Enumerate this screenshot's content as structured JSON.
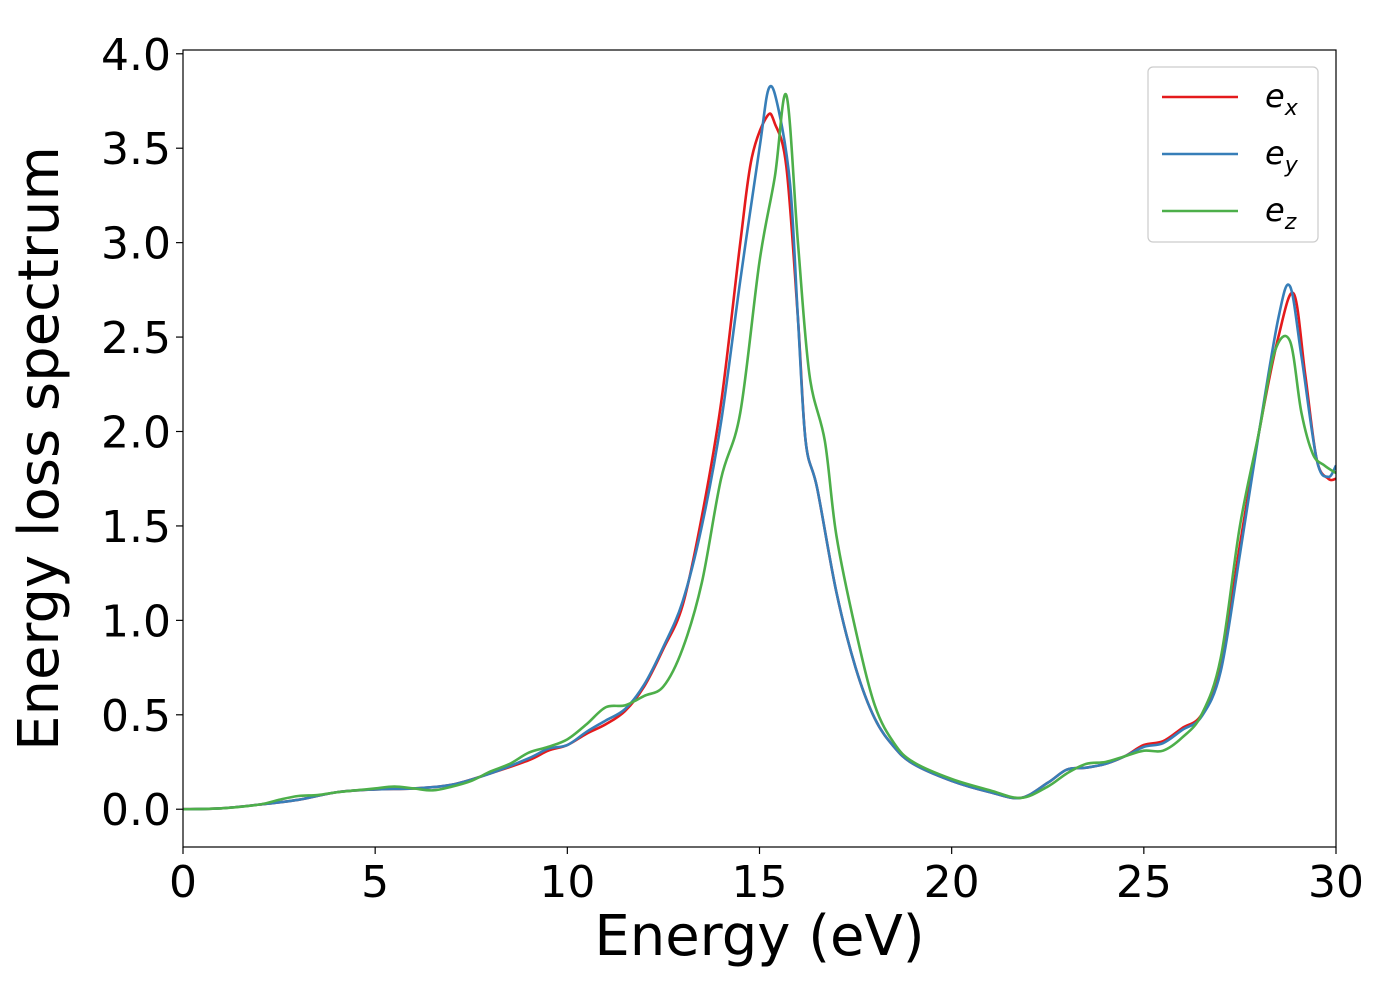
{
  "chart_data": {
    "type": "line",
    "xlabel": "Energy (eV)",
    "ylabel": "Energy loss spectrum",
    "xlim": [
      0,
      30
    ],
    "ylim": [
      -0.2,
      4.02
    ],
    "xticks": [
      0,
      5,
      10,
      15,
      20,
      25,
      30
    ],
    "xtick_labels": [
      "0",
      "5",
      "10",
      "15",
      "20",
      "25",
      "30"
    ],
    "yticks": [
      0.0,
      0.5,
      1.0,
      1.5,
      2.0,
      2.5,
      3.0,
      3.5,
      4.0
    ],
    "ytick_labels": [
      "0.0",
      "0.5",
      "1.0",
      "1.5",
      "2.0",
      "2.5",
      "3.0",
      "3.5",
      "4.0"
    ],
    "grid": false,
    "legend_position": "top-right",
    "series": [
      {
        "name": "e_x",
        "base": "e",
        "sub": "x",
        "color": "#e41a1c",
        "points": [
          [
            0,
            0
          ],
          [
            1,
            0.005
          ],
          [
            2,
            0.025
          ],
          [
            3,
            0.05
          ],
          [
            4,
            0.09
          ],
          [
            5,
            0.105
          ],
          [
            6,
            0.11
          ],
          [
            7,
            0.13
          ],
          [
            8,
            0.19
          ],
          [
            9,
            0.26
          ],
          [
            9.5,
            0.31
          ],
          [
            10,
            0.34
          ],
          [
            10.5,
            0.4
          ],
          [
            11,
            0.45
          ],
          [
            11.5,
            0.52
          ],
          [
            12,
            0.65
          ],
          [
            12.5,
            0.85
          ],
          [
            13,
            1.08
          ],
          [
            13.5,
            1.55
          ],
          [
            14,
            2.15
          ],
          [
            14.5,
            3.0
          ],
          [
            14.8,
            3.45
          ],
          [
            15.2,
            3.67
          ],
          [
            15.4,
            3.63
          ],
          [
            15.7,
            3.4
          ],
          [
            16,
            2.6
          ],
          [
            16.2,
            1.95
          ],
          [
            16.5,
            1.7
          ],
          [
            17,
            1.15
          ],
          [
            17.5,
            0.75
          ],
          [
            18,
            0.48
          ],
          [
            18.5,
            0.33
          ],
          [
            19,
            0.24
          ],
          [
            20,
            0.15
          ],
          [
            21,
            0.09
          ],
          [
            21.8,
            0.06
          ],
          [
            22.5,
            0.14
          ],
          [
            23,
            0.21
          ],
          [
            23.5,
            0.22
          ],
          [
            24,
            0.24
          ],
          [
            24.5,
            0.28
          ],
          [
            25,
            0.34
          ],
          [
            25.5,
            0.36
          ],
          [
            26,
            0.43
          ],
          [
            26.5,
            0.5
          ],
          [
            27,
            0.75
          ],
          [
            27.5,
            1.4
          ],
          [
            28,
            2.0
          ],
          [
            28.5,
            2.5
          ],
          [
            28.9,
            2.73
          ],
          [
            29.2,
            2.3
          ],
          [
            29.5,
            1.85
          ],
          [
            29.8,
            1.75
          ],
          [
            30,
            1.75
          ]
        ]
      },
      {
        "name": "e_y",
        "base": "e",
        "sub": "y",
        "color": "#377eb8",
        "points": [
          [
            0,
            0
          ],
          [
            1,
            0.005
          ],
          [
            2,
            0.025
          ],
          [
            3,
            0.05
          ],
          [
            4,
            0.09
          ],
          [
            5,
            0.105
          ],
          [
            6,
            0.11
          ],
          [
            7,
            0.13
          ],
          [
            8,
            0.19
          ],
          [
            9,
            0.27
          ],
          [
            9.5,
            0.32
          ],
          [
            10,
            0.34
          ],
          [
            10.5,
            0.41
          ],
          [
            11,
            0.47
          ],
          [
            11.5,
            0.53
          ],
          [
            12,
            0.66
          ],
          [
            12.5,
            0.86
          ],
          [
            13,
            1.1
          ],
          [
            13.5,
            1.5
          ],
          [
            14,
            2.05
          ],
          [
            14.5,
            2.8
          ],
          [
            15,
            3.5
          ],
          [
            15.25,
            3.82
          ],
          [
            15.5,
            3.7
          ],
          [
            15.8,
            3.3
          ],
          [
            16,
            2.6
          ],
          [
            16.2,
            1.95
          ],
          [
            16.5,
            1.7
          ],
          [
            17,
            1.15
          ],
          [
            17.5,
            0.75
          ],
          [
            18,
            0.48
          ],
          [
            18.5,
            0.33
          ],
          [
            19,
            0.24
          ],
          [
            20,
            0.15
          ],
          [
            21,
            0.09
          ],
          [
            21.8,
            0.06
          ],
          [
            22.5,
            0.14
          ],
          [
            23,
            0.21
          ],
          [
            23.5,
            0.22
          ],
          [
            24,
            0.24
          ],
          [
            24.5,
            0.28
          ],
          [
            25,
            0.33
          ],
          [
            25.5,
            0.35
          ],
          [
            26,
            0.42
          ],
          [
            26.5,
            0.49
          ],
          [
            27,
            0.73
          ],
          [
            27.5,
            1.35
          ],
          [
            28,
            2.0
          ],
          [
            28.5,
            2.6
          ],
          [
            28.8,
            2.77
          ],
          [
            29.1,
            2.4
          ],
          [
            29.5,
            1.85
          ],
          [
            29.8,
            1.76
          ],
          [
            30,
            1.82
          ]
        ]
      },
      {
        "name": "e_z",
        "base": "e",
        "sub": "z",
        "color": "#4daf4a",
        "points": [
          [
            0,
            0
          ],
          [
            1,
            0.005
          ],
          [
            2,
            0.025
          ],
          [
            2.5,
            0.05
          ],
          [
            3,
            0.07
          ],
          [
            3.5,
            0.075
          ],
          [
            4,
            0.09
          ],
          [
            4.5,
            0.1
          ],
          [
            5,
            0.11
          ],
          [
            5.5,
            0.12
          ],
          [
            6,
            0.11
          ],
          [
            6.5,
            0.1
          ],
          [
            7,
            0.12
          ],
          [
            7.5,
            0.15
          ],
          [
            8,
            0.2
          ],
          [
            8.5,
            0.24
          ],
          [
            9,
            0.3
          ],
          [
            9.5,
            0.33
          ],
          [
            10,
            0.37
          ],
          [
            10.5,
            0.45
          ],
          [
            11,
            0.54
          ],
          [
            11.5,
            0.55
          ],
          [
            12,
            0.6
          ],
          [
            12.5,
            0.65
          ],
          [
            13,
            0.85
          ],
          [
            13.5,
            1.2
          ],
          [
            14,
            1.75
          ],
          [
            14.5,
            2.1
          ],
          [
            15,
            2.9
          ],
          [
            15.4,
            3.35
          ],
          [
            15.7,
            3.78
          ],
          [
            16,
            3.0
          ],
          [
            16.3,
            2.3
          ],
          [
            16.7,
            1.95
          ],
          [
            17,
            1.45
          ],
          [
            17.5,
            0.95
          ],
          [
            18,
            0.55
          ],
          [
            18.5,
            0.35
          ],
          [
            19,
            0.25
          ],
          [
            20,
            0.16
          ],
          [
            21,
            0.1
          ],
          [
            21.8,
            0.06
          ],
          [
            22.5,
            0.12
          ],
          [
            23,
            0.19
          ],
          [
            23.5,
            0.24
          ],
          [
            24,
            0.25
          ],
          [
            24.5,
            0.28
          ],
          [
            25,
            0.31
          ],
          [
            25.5,
            0.31
          ],
          [
            26,
            0.38
          ],
          [
            26.5,
            0.5
          ],
          [
            27,
            0.8
          ],
          [
            27.5,
            1.5
          ],
          [
            28,
            2.0
          ],
          [
            28.4,
            2.42
          ],
          [
            28.8,
            2.48
          ],
          [
            29.1,
            2.1
          ],
          [
            29.4,
            1.88
          ],
          [
            29.7,
            1.82
          ],
          [
            30,
            1.78
          ]
        ]
      }
    ]
  }
}
